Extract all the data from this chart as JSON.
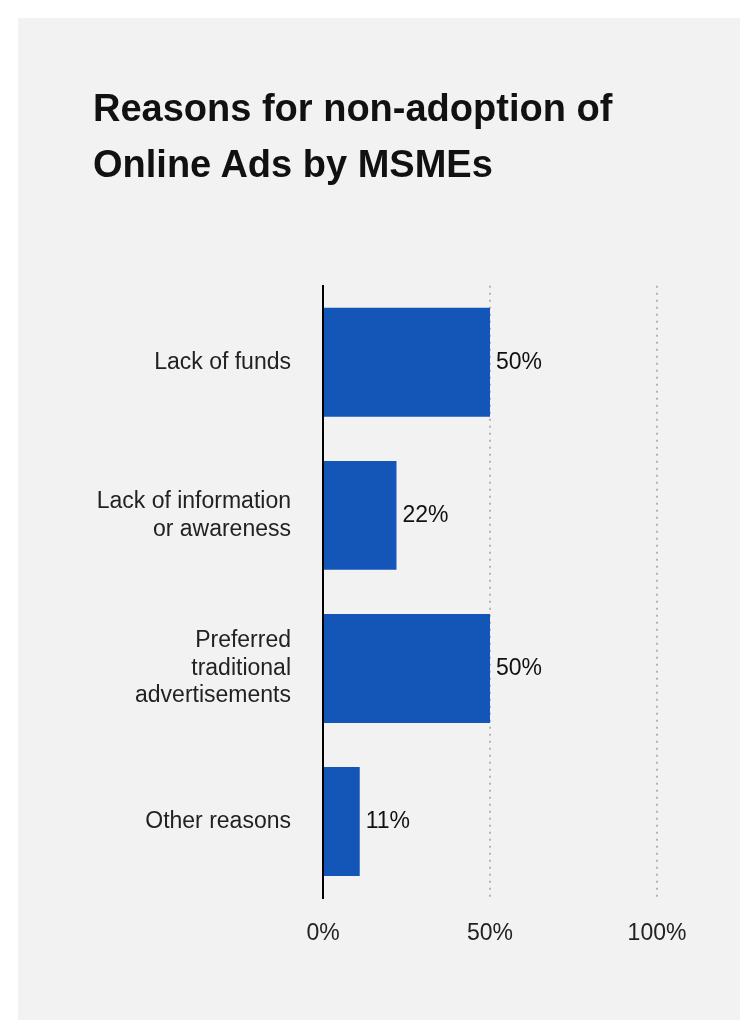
{
  "chart_data": {
    "type": "bar",
    "orientation": "horizontal",
    "title": "Reasons for non-adoption of Online Ads by MSMEs",
    "categories": [
      "Lack of funds",
      "Lack of information or awareness",
      "Preferred traditional advertisements",
      "Other reasons"
    ],
    "values": [
      50,
      22,
      50,
      11
    ],
    "color": "#1455b8",
    "value_labels": [
      "50%",
      "22%",
      "50%",
      "11%"
    ],
    "xlim": [
      0,
      100
    ],
    "xticks": [
      {
        "value": 0,
        "label": "0%"
      },
      {
        "value": 50,
        "label": "50%"
      },
      {
        "value": 100,
        "label": "100%"
      }
    ],
    "grid": "x",
    "legend": false
  }
}
